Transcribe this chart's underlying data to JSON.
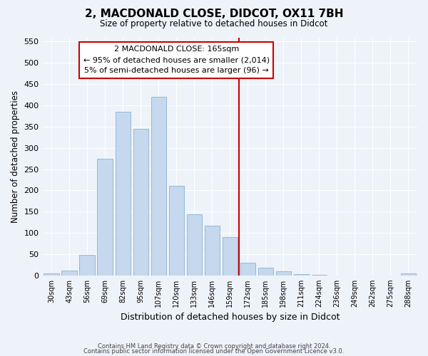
{
  "title": "2, MACDONALD CLOSE, DIDCOT, OX11 7BH",
  "subtitle": "Size of property relative to detached houses in Didcot",
  "xlabel": "Distribution of detached houses by size in Didcot",
  "ylabel": "Number of detached properties",
  "categories": [
    "30sqm",
    "43sqm",
    "56sqm",
    "69sqm",
    "82sqm",
    "95sqm",
    "107sqm",
    "120sqm",
    "133sqm",
    "146sqm",
    "159sqm",
    "172sqm",
    "185sqm",
    "198sqm",
    "211sqm",
    "224sqm",
    "236sqm",
    "249sqm",
    "262sqm",
    "275sqm",
    "288sqm"
  ],
  "values": [
    5,
    12,
    48,
    275,
    385,
    345,
    420,
    210,
    143,
    117,
    90,
    30,
    18,
    10,
    3,
    1,
    0,
    0,
    0,
    0,
    5
  ],
  "bar_color": "#c5d8ed",
  "bar_edge_color": "#8ab4d4",
  "vline_bar_index": 11,
  "vline_color": "#cc0000",
  "annotation_line1": "2 MACDONALD CLOSE: 165sqm",
  "annotation_line2": "← 95% of detached houses are smaller (2,014)",
  "annotation_line3": "5% of semi-detached houses are larger (96) →",
  "annotation_box_color": "#ffffff",
  "annotation_box_edge": "#cc0000",
  "ylim": [
    0,
    560
  ],
  "yticks": [
    0,
    50,
    100,
    150,
    200,
    250,
    300,
    350,
    400,
    450,
    500,
    550
  ],
  "footer1": "Contains HM Land Registry data © Crown copyright and database right 2024.",
  "footer2": "Contains public sector information licensed under the Open Government Licence v3.0.",
  "background_color": "#eef2f9"
}
